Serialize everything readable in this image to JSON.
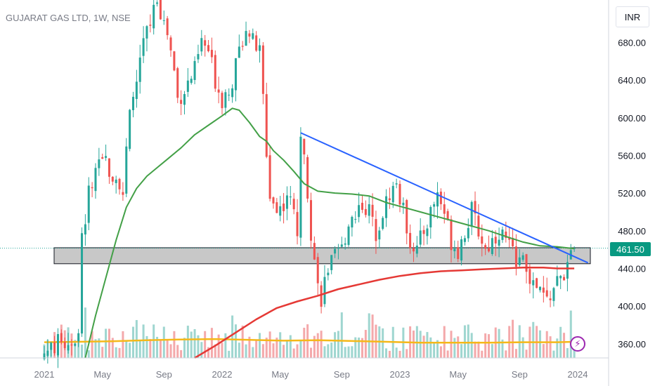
{
  "header": {
    "title": "GUJARAT GAS LTD, 1W, NSE",
    "currency": "INR"
  },
  "price_tag": "461.50",
  "colors": {
    "up": "#26a69a",
    "down": "#ef5350",
    "vol_up": "#9fd6d0",
    "vol_down": "#f4a9ab",
    "trendline": "#2962ff",
    "ma_green": "#43a047",
    "ma_red": "#e53935",
    "vol_ma": "#f5b819",
    "zone": "#c8c8c8"
  },
  "chart_data": {
    "type": "candlestick",
    "symbol": "GUJARAT GAS LTD",
    "timeframe": "1W",
    "exchange": "NSE",
    "currency": "INR",
    "last_price": 461.5,
    "ylim": [
      345,
      725
    ],
    "y_ticks": [
      360,
      400,
      440,
      480,
      520,
      560,
      600,
      640,
      680
    ],
    "x_ticks": [
      "2021",
      "May",
      "Sep",
      "2022",
      "May",
      "Sep",
      "2023",
      "May",
      "Sep",
      "2024"
    ],
    "x_tick_weeks": [
      0,
      17,
      35,
      52,
      69,
      87,
      104,
      121,
      139,
      156
    ],
    "weeks": 160,
    "anchors": [
      [
        0,
        350
      ],
      [
        4,
        360
      ],
      [
        7,
        362
      ],
      [
        10,
        368
      ],
      [
        11,
        470
      ],
      [
        13,
        520
      ],
      [
        16,
        545
      ],
      [
        18,
        555
      ],
      [
        20,
        540
      ],
      [
        22,
        535
      ],
      [
        23,
        520
      ],
      [
        25,
        600
      ],
      [
        27,
        640
      ],
      [
        29,
        680
      ],
      [
        31,
        700
      ],
      [
        33,
        730
      ],
      [
        35,
        700
      ],
      [
        36,
        690
      ],
      [
        38,
        650
      ],
      [
        39,
        620
      ],
      [
        41,
        630
      ],
      [
        44,
        650
      ],
      [
        46,
        680
      ],
      [
        48,
        670
      ],
      [
        50,
        640
      ],
      [
        52,
        620
      ],
      [
        55,
        640
      ],
      [
        57,
        670
      ],
      [
        59,
        700
      ],
      [
        61,
        680
      ],
      [
        63,
        670
      ],
      [
        64,
        620
      ],
      [
        65,
        560
      ],
      [
        66,
        520
      ],
      [
        68,
        500
      ],
      [
        70,
        510
      ],
      [
        71,
        520
      ],
      [
        73,
        500
      ],
      [
        74,
        480
      ],
      [
        75,
        570
      ],
      [
        76,
        570
      ],
      [
        78,
        480
      ],
      [
        79,
        450
      ],
      [
        80,
        420
      ],
      [
        81,
        410
      ],
      [
        83,
        440
      ],
      [
        85,
        450
      ],
      [
        87,
        460
      ],
      [
        89,
        490
      ],
      [
        91,
        500
      ],
      [
        93,
        510
      ],
      [
        95,
        500
      ],
      [
        97,
        480
      ],
      [
        99,
        500
      ],
      [
        101,
        520
      ],
      [
        103,
        530
      ],
      [
        105,
        500
      ],
      [
        107,
        470
      ],
      [
        109,
        460
      ],
      [
        111,
        480
      ],
      [
        113,
        500
      ],
      [
        115,
        520
      ],
      [
        117,
        500
      ],
      [
        119,
        470
      ],
      [
        121,
        460
      ],
      [
        123,
        480
      ],
      [
        125,
        500
      ],
      [
        127,
        480
      ],
      [
        129,
        460
      ],
      [
        131,
        470
      ],
      [
        133,
        480
      ],
      [
        135,
        470
      ],
      [
        137,
        455
      ],
      [
        139,
        450
      ],
      [
        141,
        440
      ],
      [
        143,
        420
      ],
      [
        145,
        415
      ],
      [
        147,
        405
      ],
      [
        149,
        420
      ],
      [
        151,
        430
      ],
      [
        153,
        440
      ],
      [
        155,
        461.5
      ]
    ],
    "sma_green": [
      [
        12,
        345
      ],
      [
        15,
        390
      ],
      [
        18,
        430
      ],
      [
        21,
        470
      ],
      [
        24,
        505
      ],
      [
        27,
        525
      ],
      [
        30,
        538
      ],
      [
        33,
        547
      ],
      [
        36,
        556
      ],
      [
        40,
        568
      ],
      [
        44,
        582
      ],
      [
        48,
        592
      ],
      [
        52,
        602
      ],
      [
        55,
        610
      ],
      [
        57,
        608
      ],
      [
        60,
        595
      ],
      [
        63,
        580
      ],
      [
        65,
        575
      ],
      [
        67,
        565
      ],
      [
        70,
        555
      ],
      [
        73,
        543
      ],
      [
        76,
        530
      ],
      [
        80,
        522
      ],
      [
        85,
        520
      ],
      [
        90,
        519
      ],
      [
        95,
        517
      ],
      [
        100,
        510
      ],
      [
        105,
        505
      ],
      [
        110,
        500
      ],
      [
        115,
        495
      ],
      [
        120,
        490
      ],
      [
        125,
        485
      ],
      [
        130,
        480
      ],
      [
        135,
        474
      ],
      [
        140,
        468
      ],
      [
        145,
        464
      ],
      [
        150,
        463
      ],
      [
        155,
        461
      ]
    ],
    "sma_red": [
      [
        44,
        345
      ],
      [
        50,
        358
      ],
      [
        56,
        372
      ],
      [
        62,
        386
      ],
      [
        68,
        398
      ],
      [
        74,
        405
      ],
      [
        80,
        411
      ],
      [
        86,
        418
      ],
      [
        92,
        423
      ],
      [
        98,
        428
      ],
      [
        104,
        432
      ],
      [
        110,
        435
      ],
      [
        116,
        437
      ],
      [
        122,
        438
      ],
      [
        128,
        439
      ],
      [
        134,
        440
      ],
      [
        140,
        441
      ],
      [
        146,
        441
      ],
      [
        150,
        440
      ],
      [
        155,
        440
      ]
    ],
    "trendline": {
      "from": [
        75,
        584
      ],
      "to": [
        159,
        446
      ]
    },
    "support_zone": [
      445,
      462
    ],
    "volume_ma": [
      [
        0,
        80
      ],
      [
        10,
        82
      ],
      [
        20,
        85
      ],
      [
        30,
        90
      ],
      [
        40,
        94
      ],
      [
        50,
        96
      ],
      [
        60,
        92
      ],
      [
        70,
        88
      ],
      [
        80,
        90
      ],
      [
        90,
        86
      ],
      [
        100,
        82
      ],
      [
        110,
        78
      ],
      [
        120,
        78
      ],
      [
        130,
        78
      ],
      [
        140,
        80
      ],
      [
        150,
        80
      ],
      [
        155,
        82
      ]
    ]
  }
}
